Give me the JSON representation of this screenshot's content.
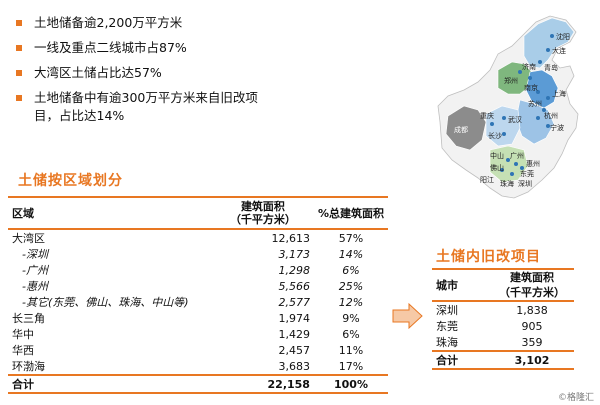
{
  "bullets": [
    "土地储备逾2,200万平方米",
    "一线及重点二线城市占87%",
    "大湾区土储占比达57%",
    "土地储备中有逾300万平方米来自旧改项目，占比达14%"
  ],
  "bullet4_line1": "土地储备中有逾300万平方米来自旧改项",
  "bullet4_line2": "目，占比达14%",
  "colors": {
    "accent": "#E87722",
    "map_green": "#7FB77E",
    "map_gray": "#8C8C8C",
    "map_blue": "#2F75B5"
  },
  "region_table": {
    "title": "土储按区域划分",
    "headers": {
      "region": "区域",
      "area_line1": "建筑面积",
      "area_line2": "（千平方米）",
      "pct": "%总建筑面积"
    },
    "rows": [
      {
        "name": "大湾区",
        "area": "12,613",
        "pct": "57%",
        "sub": false
      },
      {
        "name": "-深圳",
        "area": "3,173",
        "pct": "14%",
        "sub": true
      },
      {
        "name": "-广州",
        "area": "1,298",
        "pct": "6%",
        "sub": true
      },
      {
        "name": "-惠州",
        "area": "5,566",
        "pct": "25%",
        "sub": true
      },
      {
        "name": "-其它(东莞、佛山、珠海、中山等)",
        "area": "2,577",
        "pct": "12%",
        "sub": true
      },
      {
        "name": "长三角",
        "area": "1,974",
        "pct": "9%",
        "sub": false
      },
      {
        "name": "华中",
        "area": "1,429",
        "pct": "6%",
        "sub": false
      },
      {
        "name": "华西",
        "area": "2,457",
        "pct": "11%",
        "sub": false
      },
      {
        "name": "环渤海",
        "area": "3,683",
        "pct": "17%",
        "sub": false
      }
    ],
    "total": {
      "name": "合计",
      "area": "22,158",
      "pct": "100%"
    }
  },
  "renewal_table": {
    "title": "土储内旧改项目",
    "headers": {
      "city": "城市",
      "area_line1": "建筑面积",
      "area_line2": "（千平方米）"
    },
    "rows": [
      {
        "city": "深圳",
        "area": "1,838"
      },
      {
        "city": "东莞",
        "area": "905"
      },
      {
        "city": "珠海",
        "area": "359"
      }
    ],
    "total": {
      "city": "合计",
      "area": "3,102"
    }
  },
  "map_labels": {
    "shenyang": "沈阳",
    "dalian": "大连",
    "zhengzhou": "郑州",
    "jinan": "济南",
    "qingdao": "青岛",
    "nanjing": "南京",
    "shanghai": "上海",
    "suzhou": "苏州",
    "chengdu": "成都",
    "chongqing": "重庆",
    "wuhan": "武汉",
    "hangzhou": "杭州",
    "changsha": "长沙",
    "ningbo": "宁波",
    "zhongshan": "中山",
    "guangzhou": "广州",
    "huizhou": "惠州",
    "foshan": "佛山",
    "dongguan": "东莞",
    "yangjiang": "阳江",
    "zhuhai": "珠海",
    "shenzhen": "深圳"
  },
  "watermark": "©格隆汇"
}
